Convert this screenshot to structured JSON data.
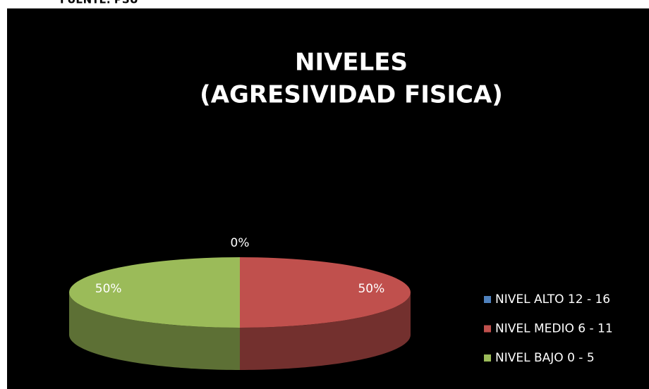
{
  "source": "FUENTE: PSU",
  "chart_data": {
    "type": "pie3d",
    "title": "NIVELES",
    "subtitle": "(AGRESIVIDAD FISICA)",
    "categories": [
      "NIVEL ALTO 12 - 16",
      "NIVEL MEDIO 6 - 11",
      "NIVEL BAJO 0 - 5"
    ],
    "values": [
      0,
      50,
      50
    ],
    "value_labels": [
      "0%",
      "50%",
      "50%"
    ],
    "colors": [
      "#4f81bd",
      "#c0504d",
      "#9bbb59"
    ],
    "legend": "right"
  }
}
